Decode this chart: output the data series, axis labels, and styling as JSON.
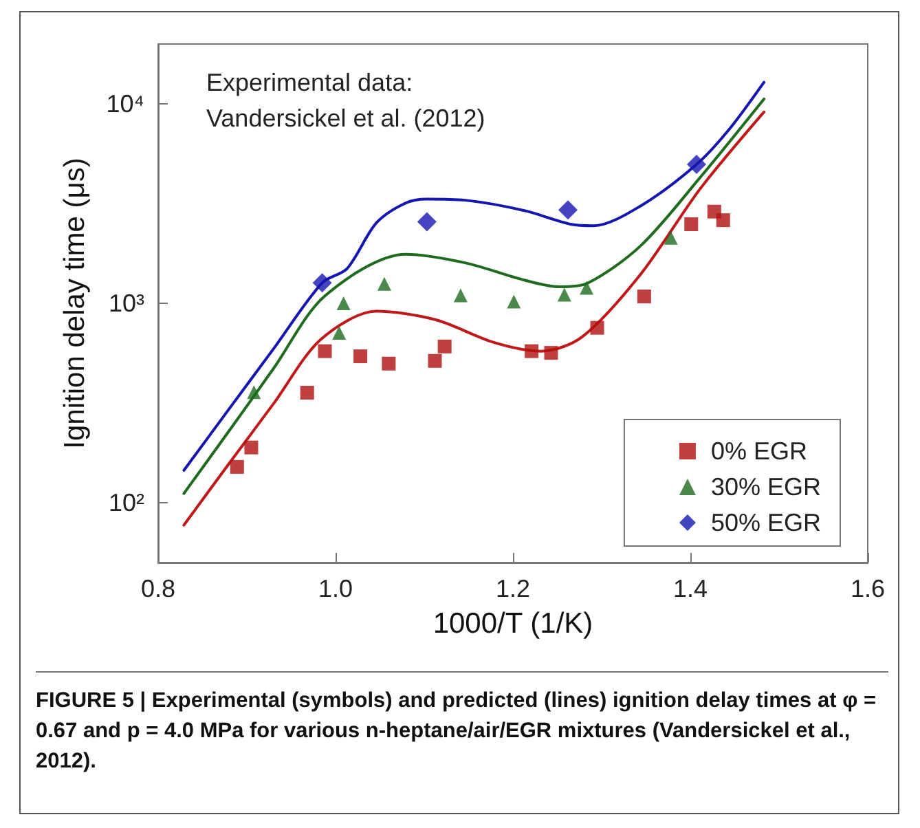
{
  "chart_data": {
    "type": "scatter",
    "xlabel": "1000/T (1/K)",
    "ylabel": "Ignition delay time (μs)",
    "xlim": [
      0.8,
      1.6
    ],
    "xticks": [
      0.8,
      {
        "value": 1,
        "label": "1.0"
      },
      1.2,
      1.4,
      1.6
    ],
    "ylim": [
      50,
      20000
    ],
    "yticks": [
      {
        "value": 100,
        "label": "10²"
      },
      {
        "value": 1000,
        "label": "10³"
      },
      {
        "value": 10000,
        "label": "10⁴"
      }
    ],
    "log": "y",
    "grid": false,
    "legend": "bottom right",
    "annotations": [
      "Experimental data:\nVandersickel et al. (2012)",
      "FIGURE 5 | Experimental (symbols) and predicted (lines) ignition delay times at φ = 0.67 and p = 4.0 MPa for various n-heptane/air/EGR mixtures (Vandersickel et al., 2012)."
    ],
    "series": [
      {
        "name": "0% EGR",
        "color": "#b01010",
        "marker": "square",
        "x": [
          0.889,
          0.905,
          0.968,
          0.988,
          1.028,
          1.06,
          1.112,
          1.123,
          1.221,
          1.243,
          1.295,
          1.348,
          1.401,
          1.427,
          1.437
        ],
        "values": [
          151,
          189,
          356,
          575,
          542,
          498,
          514,
          607,
          575,
          564,
          753,
          1082,
          2494,
          2884,
          2612
        ]
      },
      {
        "name": "30% EGR",
        "color": "#1e6b1e",
        "marker": "triangle",
        "x": [
          0.908,
          1.004,
          1.009,
          1.055,
          1.141,
          1.201,
          1.258,
          1.283,
          1.378
        ],
        "values": [
          358,
          710,
          1000,
          1251,
          1096,
          1020,
          1104,
          1195,
          2131
        ]
      },
      {
        "name": "50% EGR",
        "color": "#1515b0",
        "marker": "diamond",
        "x": [
          0.985,
          1.103,
          1.262,
          1.407
        ],
        "values": [
          1267,
          2565,
          2943,
          4977
        ]
      },
      {
        "type": "line",
        "color": "#c01818",
        "marker": "none",
        "line_style": "solid",
        "x": [
          0.829,
          0.88,
          0.93,
          0.983,
          1.046,
          1.113,
          1.179,
          1.232,
          1.278,
          1.344,
          1.411,
          1.483
        ],
        "values": [
          77,
          157,
          313,
          656,
          912,
          826,
          635,
          575,
          678,
          1399,
          3750,
          9120
        ]
      },
      {
        "type": "line",
        "color": "#1e6b1e",
        "marker": "none",
        "line_style": "solid",
        "x": [
          0.829,
          0.88,
          0.93,
          0.988,
          1.079,
          1.146,
          1.212,
          1.252,
          1.285,
          1.344,
          1.411,
          1.483
        ],
        "values": [
          111,
          229,
          470,
          1089,
          1762,
          1596,
          1310,
          1210,
          1267,
          1944,
          4276,
          10600
        ]
      },
      {
        "type": "line",
        "color": "#1515b0",
        "marker": "none",
        "line_style": "solid",
        "x": [
          0.829,
          0.88,
          0.93,
          0.985,
          1.013,
          1.046,
          1.079,
          1.103,
          1.146,
          1.212,
          1.265,
          1.291,
          1.344,
          1.407,
          1.444,
          1.483
        ],
        "values": [
          145,
          295,
          590,
          1267,
          1493,
          2530,
          3185,
          3335,
          3290,
          2925,
          2495,
          2450,
          3080,
          4977,
          7480,
          12850
        ]
      }
    ]
  }
}
